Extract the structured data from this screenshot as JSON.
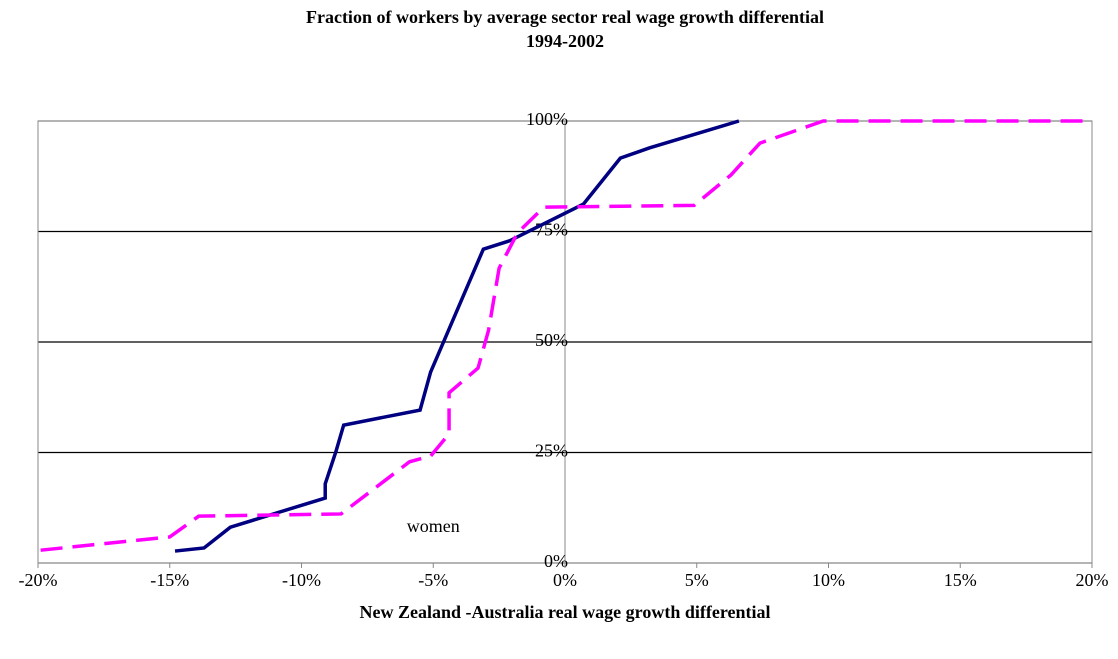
{
  "chart_data": {
    "type": "line",
    "title": "Fraction of workers by average sector real wage growth differential",
    "subtitle": "1994-2002",
    "xlabel": "New Zealand -Australia real wage growth differential",
    "annotations": [
      {
        "text": "women",
        "x": -5,
        "y": 8
      }
    ],
    "xlim": [
      -20,
      20
    ],
    "ylim": [
      0,
      100
    ],
    "xticks": [
      {
        "value": -20,
        "label": "-20%"
      },
      {
        "value": -15,
        "label": "-15%"
      },
      {
        "value": -10,
        "label": "-10%"
      },
      {
        "value": -5,
        "label": "-5%"
      },
      {
        "value": 0,
        "label": "0%"
      },
      {
        "value": 5,
        "label": "5%"
      },
      {
        "value": 10,
        "label": "10%"
      },
      {
        "value": 15,
        "label": "15%"
      },
      {
        "value": 20,
        "label": "20%"
      }
    ],
    "yticks": [
      {
        "value": 0,
        "label": "0%"
      },
      {
        "value": 25,
        "label": "25%"
      },
      {
        "value": 50,
        "label": "50%"
      },
      {
        "value": 75,
        "label": "75%"
      },
      {
        "value": 100,
        "label": "100%"
      }
    ],
    "grid": true,
    "series": [
      {
        "color": "#000080",
        "dash": false,
        "x": [
          -14.8,
          -13.7,
          -12.7,
          -9.1,
          -9.1,
          -8.7,
          -8.4,
          -5.5,
          -5.1,
          -3.1,
          -2.1,
          0.7,
          2.1,
          3.2,
          6.6
        ],
        "values": [
          2.7,
          3.4,
          8.1,
          14.7,
          17.9,
          25.1,
          31.2,
          34.6,
          43.2,
          71.0,
          72.9,
          81.2,
          91.6,
          93.9,
          100
        ]
      },
      {
        "color": "#ff00ff",
        "dash": true,
        "x": [
          -19.9,
          -15.0,
          -13.9,
          -8.5,
          -5.9,
          -5.1,
          -4.4,
          -4.4,
          -3.3,
          -2.9,
          -2.5,
          -1.8,
          -0.8,
          4.9,
          6.3,
          7.4,
          9.8,
          20
        ],
        "values": [
          2.9,
          5.9,
          10.6,
          11.1,
          22.9,
          24.2,
          29.2,
          38.5,
          44.1,
          52.7,
          66.7,
          74.7,
          80.5,
          80.9,
          87.8,
          95.0,
          100,
          100
        ]
      }
    ]
  }
}
